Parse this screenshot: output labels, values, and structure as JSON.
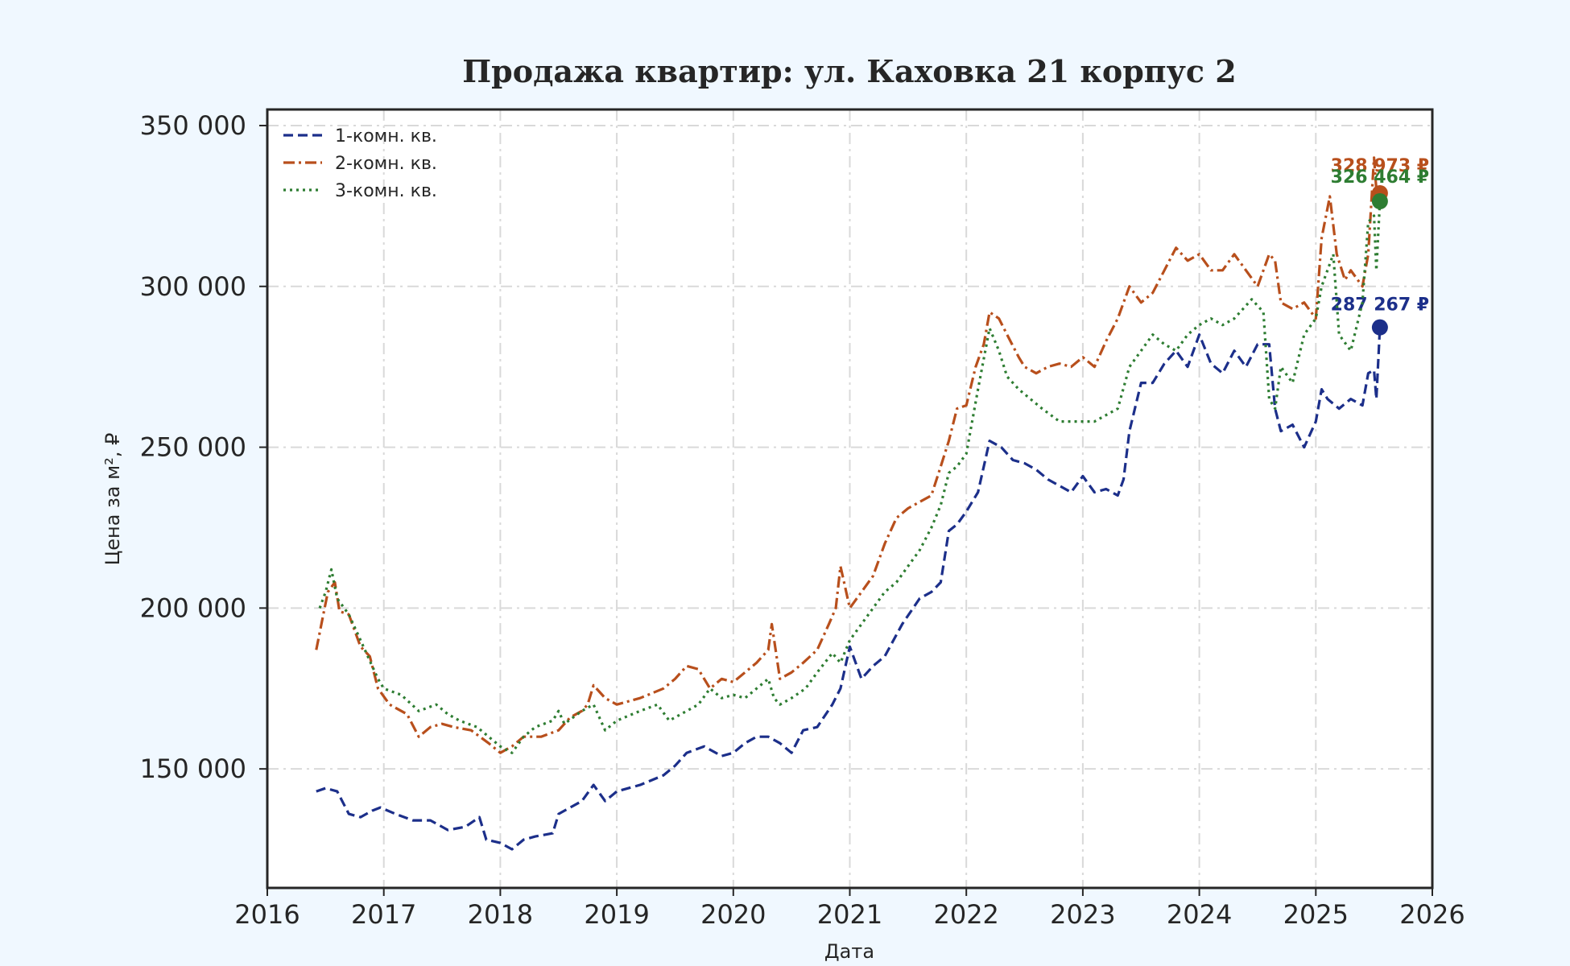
{
  "chart_data": {
    "type": "line",
    "title": "Продажа квартир: ул. Каховка 21 корпус 2",
    "xlabel": "Дата",
    "ylabel": "Цена за м², ₽",
    "xlim": [
      2016.0,
      2026.0
    ],
    "ylim": [
      113000,
      355000
    ],
    "x_ticks": [
      2016,
      2017,
      2018,
      2019,
      2020,
      2021,
      2022,
      2023,
      2024,
      2025,
      2026
    ],
    "x_tick_labels": [
      "2016",
      "2017",
      "2018",
      "2019",
      "2020",
      "2021",
      "2022",
      "2023",
      "2024",
      "2025",
      "2026"
    ],
    "y_ticks": [
      150000,
      200000,
      250000,
      300000,
      350000
    ],
    "y_tick_labels": [
      "150 000",
      "200 000",
      "250 000",
      "300 000",
      "350 000"
    ],
    "grid": true,
    "legend_position": "top-left",
    "series": [
      {
        "name": "1-комн. кв.",
        "color": "#1c2f8a",
        "dash": "dashed",
        "end_label": "287 267 ₽",
        "end_value": 287267,
        "x": [
          2016.42,
          2016.5,
          2016.6,
          2016.7,
          2016.8,
          2016.9,
          2016.97,
          2017.1,
          2017.25,
          2017.4,
          2017.55,
          2017.7,
          2017.82,
          2017.88,
          2018.0,
          2018.1,
          2018.2,
          2018.3,
          2018.45,
          2018.5,
          2018.6,
          2018.7,
          2018.8,
          2018.9,
          2019.0,
          2019.2,
          2019.4,
          2019.5,
          2019.6,
          2019.75,
          2019.9,
          2020.0,
          2020.1,
          2020.2,
          2020.3,
          2020.4,
          2020.5,
          2020.6,
          2020.72,
          2020.85,
          2020.92,
          2021.0,
          2021.1,
          2021.2,
          2021.3,
          2021.45,
          2021.6,
          2021.7,
          2021.78,
          2021.85,
          2021.92,
          2022.0,
          2022.1,
          2022.2,
          2022.3,
          2022.4,
          2022.5,
          2022.6,
          2022.7,
          2022.8,
          2022.9,
          2023.0,
          2023.1,
          2023.2,
          2023.3,
          2023.35,
          2023.4,
          2023.5,
          2023.6,
          2023.7,
          2023.8,
          2023.9,
          2024.0,
          2024.1,
          2024.2,
          2024.3,
          2024.4,
          2024.5,
          2024.6,
          2024.65,
          2024.7,
          2024.8,
          2024.9,
          2025.0,
          2025.05,
          2025.1,
          2025.2,
          2025.3,
          2025.4,
          2025.45,
          2025.5,
          2025.52,
          2025.55
        ],
        "y": [
          143000,
          144000,
          143000,
          136000,
          135000,
          137000,
          138000,
          136000,
          134000,
          134000,
          131000,
          132000,
          135000,
          128000,
          127000,
          125000,
          128000,
          129000,
          130000,
          136000,
          138000,
          140000,
          145000,
          140000,
          143000,
          145000,
          148000,
          151000,
          155000,
          157000,
          154000,
          155000,
          158000,
          160000,
          160000,
          158000,
          155000,
          162000,
          163000,
          170000,
          175000,
          188000,
          178000,
          182000,
          185000,
          195000,
          203000,
          205000,
          208000,
          224000,
          226000,
          230000,
          236000,
          252000,
          250000,
          246000,
          245000,
          243000,
          240000,
          238000,
          236000,
          241000,
          236000,
          237000,
          235000,
          240000,
          255000,
          270000,
          270000,
          276000,
          280000,
          275000,
          285000,
          276000,
          273000,
          280000,
          275000,
          282000,
          282000,
          262000,
          255000,
          257000,
          250000,
          258000,
          268000,
          265000,
          262000,
          265000,
          263000,
          273000,
          274000,
          265000,
          287267
        ]
      },
      {
        "name": "2-комн. кв.",
        "color": "#b84f1c",
        "dash": "dashdot",
        "end_label": "328 973 ₽",
        "end_value": 328973,
        "x": [
          2016.42,
          2016.47,
          2016.52,
          2016.58,
          2016.62,
          2016.7,
          2016.8,
          2016.88,
          2016.95,
          2017.05,
          2017.2,
          2017.3,
          2017.4,
          2017.5,
          2017.6,
          2017.75,
          2017.9,
          2018.0,
          2018.1,
          2018.2,
          2018.35,
          2018.5,
          2018.6,
          2018.7,
          2018.75,
          2018.8,
          2018.9,
          2019.0,
          2019.2,
          2019.4,
          2019.5,
          2019.6,
          2019.7,
          2019.8,
          2019.9,
          2020.0,
          2020.1,
          2020.2,
          2020.3,
          2020.33,
          2020.4,
          2020.5,
          2020.6,
          2020.72,
          2020.82,
          2020.88,
          2020.92,
          2021.0,
          2021.1,
          2021.2,
          2021.3,
          2021.4,
          2021.5,
          2021.6,
          2021.7,
          2021.78,
          2021.85,
          2021.92,
          2022.0,
          2022.08,
          2022.15,
          2022.2,
          2022.28,
          2022.35,
          2022.45,
          2022.5,
          2022.6,
          2022.7,
          2022.8,
          2022.9,
          2023.0,
          2023.1,
          2023.2,
          2023.3,
          2023.4,
          2023.5,
          2023.6,
          2023.7,
          2023.8,
          2023.9,
          2024.0,
          2024.1,
          2024.2,
          2024.3,
          2024.4,
          2024.5,
          2024.6,
          2024.65,
          2024.7,
          2024.8,
          2024.9,
          2025.0,
          2025.05,
          2025.12,
          2025.18,
          2025.25,
          2025.3,
          2025.4,
          2025.45,
          2025.5,
          2025.52,
          2025.55
        ],
        "y": [
          187000,
          196000,
          205000,
          208000,
          199000,
          198000,
          188000,
          185000,
          175000,
          170000,
          167000,
          160000,
          163000,
          164000,
          163000,
          162000,
          158000,
          155000,
          157000,
          160000,
          160000,
          162000,
          166000,
          168000,
          170000,
          176000,
          172000,
          170000,
          172000,
          175000,
          178000,
          182000,
          181000,
          175000,
          178000,
          177000,
          180000,
          183000,
          187000,
          195000,
          178000,
          180000,
          183000,
          187000,
          195000,
          200000,
          213000,
          200000,
          205000,
          210000,
          220000,
          228000,
          231000,
          233000,
          235000,
          244000,
          252000,
          262000,
          263000,
          275000,
          282000,
          292000,
          290000,
          285000,
          278000,
          275000,
          273000,
          275000,
          276000,
          275000,
          278000,
          275000,
          283000,
          290000,
          300000,
          295000,
          298000,
          305000,
          312000,
          308000,
          310000,
          305000,
          305000,
          310000,
          305000,
          300000,
          310000,
          308000,
          295000,
          293000,
          295000,
          290000,
          315000,
          328000,
          310000,
          302000,
          305000,
          300000,
          310000,
          340000,
          330000,
          328973
        ]
      },
      {
        "name": "3-комн. кв.",
        "color": "#2e7d32",
        "dash": "dotted",
        "end_label": "326 464 ₽",
        "end_value": 326464,
        "x": [
          2016.45,
          2016.5,
          2016.55,
          2016.6,
          2016.7,
          2016.8,
          2016.9,
          2016.95,
          2017.0,
          2017.15,
          2017.3,
          2017.45,
          2017.55,
          2017.65,
          2017.8,
          2017.9,
          2018.0,
          2018.1,
          2018.2,
          2018.3,
          2018.45,
          2018.5,
          2018.55,
          2018.7,
          2018.8,
          2018.9,
          2019.0,
          2019.2,
          2019.35,
          2019.45,
          2019.6,
          2019.7,
          2019.8,
          2019.9,
          2020.0,
          2020.1,
          2020.2,
          2020.3,
          2020.35,
          2020.4,
          2020.5,
          2020.62,
          2020.72,
          2020.85,
          2020.92,
          2021.0,
          2021.1,
          2021.2,
          2021.3,
          2021.4,
          2021.5,
          2021.6,
          2021.7,
          2021.78,
          2021.85,
          2021.92,
          2022.0,
          2022.1,
          2022.2,
          2022.28,
          2022.35,
          2022.45,
          2022.55,
          2022.65,
          2022.8,
          2022.95,
          2023.1,
          2023.3,
          2023.4,
          2023.5,
          2023.6,
          2023.7,
          2023.8,
          2023.9,
          2024.0,
          2024.1,
          2024.2,
          2024.3,
          2024.45,
          2024.55,
          2024.6,
          2024.65,
          2024.7,
          2024.8,
          2024.9,
          2025.0,
          2025.05,
          2025.15,
          2025.2,
          2025.3,
          2025.4,
          2025.45,
          2025.5,
          2025.52,
          2025.55
        ],
        "y": [
          200000,
          205000,
          212000,
          203000,
          198000,
          190000,
          182000,
          178000,
          175000,
          173000,
          168000,
          170000,
          167000,
          165000,
          163000,
          160000,
          157000,
          155000,
          160000,
          163000,
          165000,
          168000,
          164000,
          168000,
          170000,
          162000,
          165000,
          168000,
          170000,
          165000,
          168000,
          170000,
          175000,
          172000,
          173000,
          172000,
          175000,
          178000,
          172000,
          170000,
          172000,
          175000,
          180000,
          186000,
          183000,
          190000,
          195000,
          200000,
          205000,
          208000,
          213000,
          218000,
          225000,
          232000,
          242000,
          244000,
          248000,
          268000,
          287000,
          280000,
          272000,
          268000,
          265000,
          262000,
          258000,
          258000,
          258000,
          262000,
          275000,
          280000,
          285000,
          282000,
          280000,
          285000,
          288000,
          290000,
          288000,
          290000,
          296000,
          292000,
          265000,
          262000,
          275000,
          270000,
          285000,
          290000,
          300000,
          310000,
          285000,
          280000,
          295000,
          320000,
          322000,
          305000,
          326464
        ]
      }
    ]
  }
}
